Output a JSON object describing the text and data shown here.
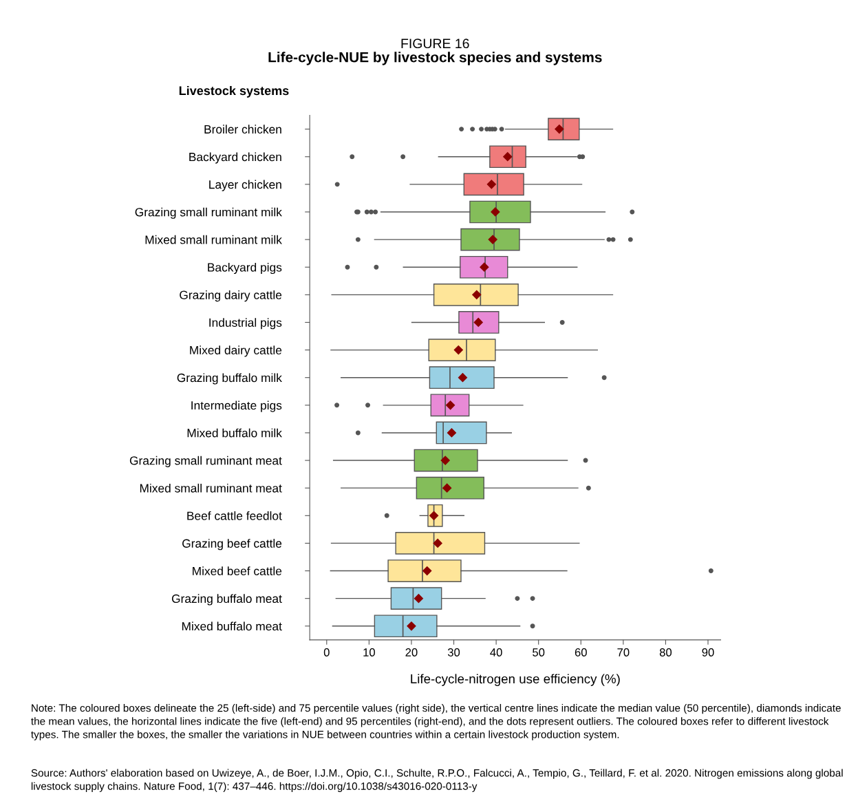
{
  "chart_data": {
    "type": "box",
    "orientation": "horizontal",
    "title": "FIGURE 16",
    "subtitle": "Life-cycle-NUE by livestock species and systems",
    "ylabel": "Livestock systems",
    "xlabel": "Life-cycle-nitrogen use efficiency (%)",
    "categories": [
      "Broiler chicken",
      "Backyard chicken",
      "Layer chicken",
      "Grazing small ruminant milk",
      "Mixed small ruminant milk",
      "Backyard pigs",
      "Grazing dairy cattle",
      "Industrial pigs",
      "Mixed dairy cattle",
      "Grazing buffalo milk",
      "Intermediate pigs",
      "Mixed buffalo milk",
      "Grazing small ruminant meat",
      "Mixed small ruminant meat",
      "Beef cattle feedlot",
      "Grazing beef cattle",
      "Mixed beef cattle",
      "Grazing buffalo meat",
      "Mixed buffalo meat"
    ],
    "colors": [
      "#f07b7b",
      "#f07b7b",
      "#f07b7b",
      "#84bd5a",
      "#84bd5a",
      "#e88ad6",
      "#fee599",
      "#e88ad6",
      "#fee599",
      "#99d0e4",
      "#e88ad6",
      "#99d0e4",
      "#84bd5a",
      "#84bd5a",
      "#fee599",
      "#fee599",
      "#fee599",
      "#99d0e4",
      "#99d0e4"
    ],
    "boxes": [
      {
        "low": 42.2,
        "q1": 52.3,
        "median": 55.8,
        "q3": 59.6,
        "high": 67.5,
        "mean": 54.9,
        "outliers": [
          31.8,
          34.4,
          36.5,
          37.8,
          38.5,
          39.1,
          39.7,
          41.3
        ]
      },
      {
        "low": 26.4,
        "q1": 38.5,
        "median": 43.8,
        "q3": 47.0,
        "high": 59.0,
        "mean": 42.7,
        "outliers": [
          6.0,
          18.0,
          59.7,
          60.4
        ]
      },
      {
        "low": 19.7,
        "q1": 32.4,
        "median": 40.3,
        "q3": 46.5,
        "high": 60.2,
        "mean": 38.9,
        "outliers": [
          2.5
        ]
      },
      {
        "low": 12.8,
        "q1": 33.8,
        "median": 40.0,
        "q3": 48.1,
        "high": 65.7,
        "mean": 39.8,
        "outliers": [
          7.1,
          7.4,
          9.5,
          10.5,
          11.5,
          72.1
        ]
      },
      {
        "low": 11.3,
        "q1": 31.7,
        "median": 39.5,
        "q3": 45.5,
        "high": 65.5,
        "mean": 39.2,
        "outliers": [
          7.4,
          66.6,
          67.6,
          71.7
        ]
      },
      {
        "low": 18.1,
        "q1": 31.5,
        "median": 37.4,
        "q3": 42.7,
        "high": 59.1,
        "mean": 37.2,
        "outliers": [
          4.9,
          11.7
        ]
      },
      {
        "low": 1.2,
        "q1": 25.3,
        "median": 36.3,
        "q3": 45.2,
        "high": 67.5,
        "mean": 35.4
      },
      {
        "low": 20.1,
        "q1": 31.2,
        "median": 34.5,
        "q3": 40.6,
        "high": 51.4,
        "mean": 35.8,
        "outliers": [
          55.6
        ]
      },
      {
        "low": 1.0,
        "q1": 24.1,
        "median": 33.0,
        "q3": 39.8,
        "high": 63.9,
        "mean": 31.1
      },
      {
        "low": 3.4,
        "q1": 24.3,
        "median": 29.1,
        "q3": 39.5,
        "high": 56.8,
        "mean": 32.1,
        "outliers": [
          65.5
        ]
      },
      {
        "low": 13.4,
        "q1": 24.6,
        "median": 28.0,
        "q3": 33.6,
        "high": 46.3,
        "mean": 29.2,
        "outliers": [
          2.4,
          9.7
        ]
      },
      {
        "low": 13.1,
        "q1": 25.9,
        "median": 27.5,
        "q3": 37.7,
        "high": 43.6,
        "mean": 29.5,
        "outliers": [
          7.4
        ]
      },
      {
        "low": 1.6,
        "q1": 20.7,
        "median": 27.3,
        "q3": 35.6,
        "high": 56.8,
        "mean": 28.0,
        "outliers": [
          61.1
        ]
      },
      {
        "low": 3.4,
        "q1": 21.2,
        "median": 27.1,
        "q3": 37.1,
        "high": 59.3,
        "mean": 28.4,
        "outliers": [
          61.8
        ]
      },
      {
        "low": 22.0,
        "q1": 23.9,
        "median": 25.3,
        "q3": 27.3,
        "high": 32.4,
        "mean": 25.3,
        "outliers": [
          14.2
        ]
      },
      {
        "low": 1.1,
        "q1": 16.3,
        "median": 25.3,
        "q3": 37.3,
        "high": 59.6,
        "mean": 26.2
      },
      {
        "low": 0.9,
        "q1": 14.5,
        "median": 22.6,
        "q3": 31.7,
        "high": 56.7,
        "mean": 23.7,
        "outliers": [
          90.7
        ]
      },
      {
        "low": 2.2,
        "q1": 15.2,
        "median": 20.4,
        "q3": 27.1,
        "high": 37.4,
        "mean": 21.7,
        "outliers": [
          45.0,
          48.6
        ]
      },
      {
        "low": 1.4,
        "q1": 11.3,
        "median": 18.0,
        "q3": 26.0,
        "high": 45.6,
        "mean": 20.0,
        "outliers": [
          48.6
        ]
      }
    ],
    "xlim": [
      -4,
      93
    ],
    "xticks": [
      0,
      10,
      20,
      30,
      40,
      50,
      60,
      70,
      80,
      90
    ],
    "grid": false,
    "legend": false,
    "annotations": [
      "Note: The coloured boxes delineate the 25 (left-side) and 75 percentile values (right side), the vertical centre lines indicate the median value (50 percentile), diamonds indicate the mean values, the horizontal lines indicate the five (left-end) and 95 percentiles (right-end), and the dots represent outliers. The coloured boxes refer to different livestock types. The smaller the boxes, the smaller the variations in NUE between countries within a certain livestock production system.",
      "Source: Authors' elaboration based on Uwizeye, A., de Boer, I.J.M., Opio, C.I., Schulte, R.P.O., Falcucci, A., Tempio, G., Teillard, F. et al. 2020. Nitrogen emissions along global livestock supply chains. Nature Food, 1(7): 437–446. https://doi.org/10.1038/s43016-020-0113-y"
    ]
  }
}
